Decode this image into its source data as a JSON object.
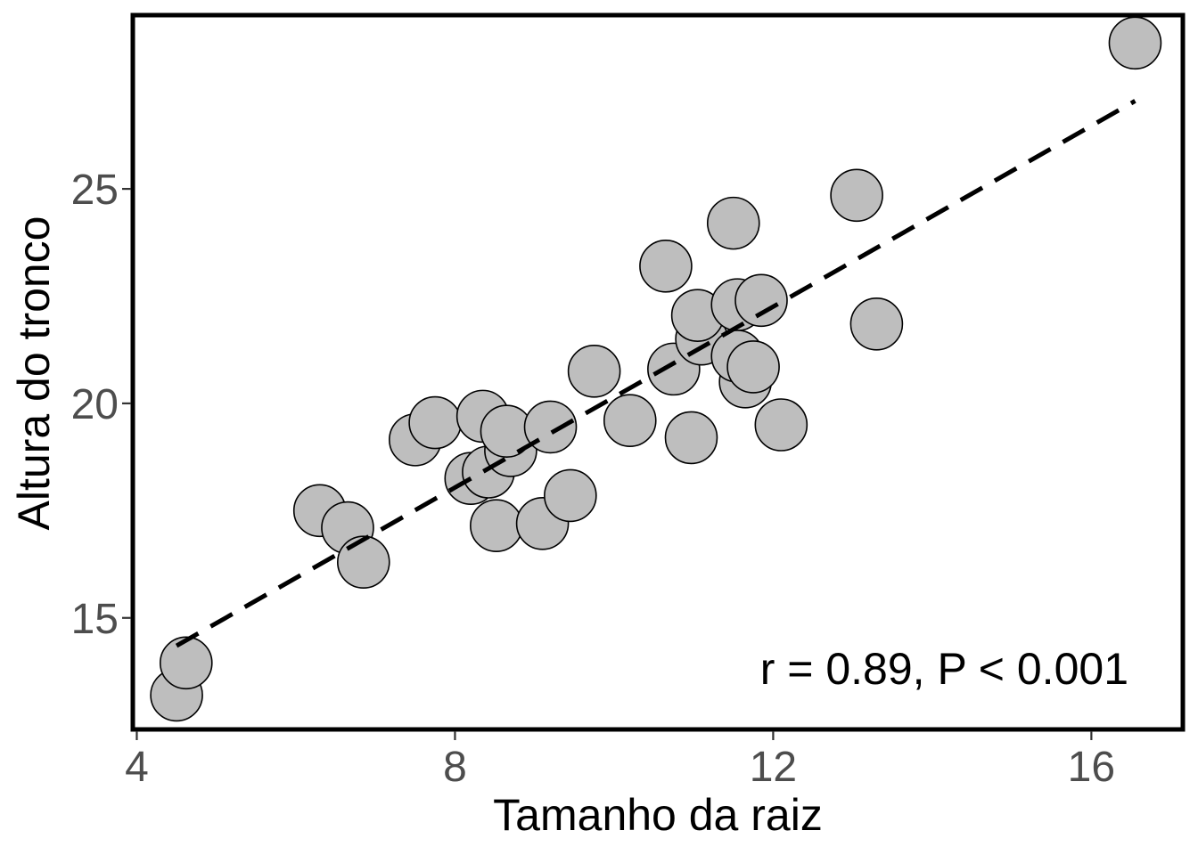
{
  "chart_data": {
    "type": "scatter",
    "title": "",
    "xlabel": "Tamanho da raiz",
    "ylabel": "Altura do tronco",
    "xlim": [
      3.95,
      17.15
    ],
    "ylim": [
      12.4,
      29.05
    ],
    "x_ticks": [
      4,
      8,
      12,
      16
    ],
    "y_ticks": [
      15,
      20,
      25
    ],
    "x_tick_labels": [
      "4",
      "8",
      "12",
      "16"
    ],
    "y_tick_labels": [
      "15",
      "20",
      "25"
    ],
    "grid": false,
    "legend": "none",
    "point_fill": "#bebebe",
    "point_stroke": "#000000",
    "series": [
      {
        "x": [
          4.5,
          4.62,
          6.3,
          6.65,
          6.85,
          7.5,
          7.75,
          8.2,
          8.35,
          8.42,
          8.52,
          8.7,
          8.65,
          9.2,
          9.1,
          9.45,
          9.75,
          10.2,
          10.65,
          10.75,
          10.97,
          11.1,
          11.05,
          11.5,
          11.55,
          11.65,
          11.55,
          11.75,
          11.85,
          12.1,
          13.05,
          13.3,
          16.55
        ],
        "y": [
          13.2,
          13.95,
          17.5,
          17.1,
          16.3,
          19.15,
          19.55,
          18.25,
          19.7,
          18.4,
          17.15,
          18.9,
          19.35,
          19.45,
          17.2,
          17.85,
          20.75,
          19.6,
          23.2,
          20.8,
          19.2,
          21.5,
          22.05,
          24.2,
          22.3,
          20.5,
          21.1,
          20.85,
          22.4,
          19.5,
          24.85,
          21.85,
          28.4
        ]
      }
    ],
    "trendline": {
      "x": [
        4.5,
        16.55
      ],
      "y": [
        14.35,
        27.05
      ],
      "style": "dashed"
    },
    "annotation": "r = 0.89, P < 0.001"
  }
}
